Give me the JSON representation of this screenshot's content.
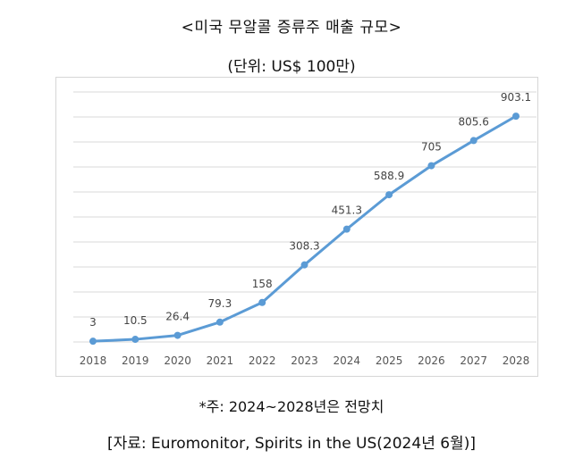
{
  "header": {
    "title": "<미국 무알콜 증류주 매출 규모>",
    "unit": "(단위: US$ 100만)"
  },
  "footer": {
    "note": "*주: 2024~2028년은 전망치",
    "source": "[자료: Euromonitor, Spirits in the US(2024년 6월)]"
  },
  "chart_data": {
    "type": "line",
    "categories": [
      "2018",
      "2019",
      "2020",
      "2021",
      "2022",
      "2023",
      "2024",
      "2025",
      "2026",
      "2027",
      "2028"
    ],
    "values": [
      3,
      10.5,
      26.4,
      79.3,
      158,
      308.3,
      451.3,
      588.9,
      705,
      805.6,
      903.1
    ],
    "data_labels": [
      "3",
      "10.5",
      "26.4",
      "79.3",
      "158",
      "308.3",
      "451.3",
      "588.9",
      "705",
      "805.6",
      "903.1"
    ],
    "ylim": [
      0,
      1000
    ],
    "grid": true,
    "legend": "none",
    "line_color": "#5b9bd5",
    "grid_color": "#d9d9d9"
  }
}
